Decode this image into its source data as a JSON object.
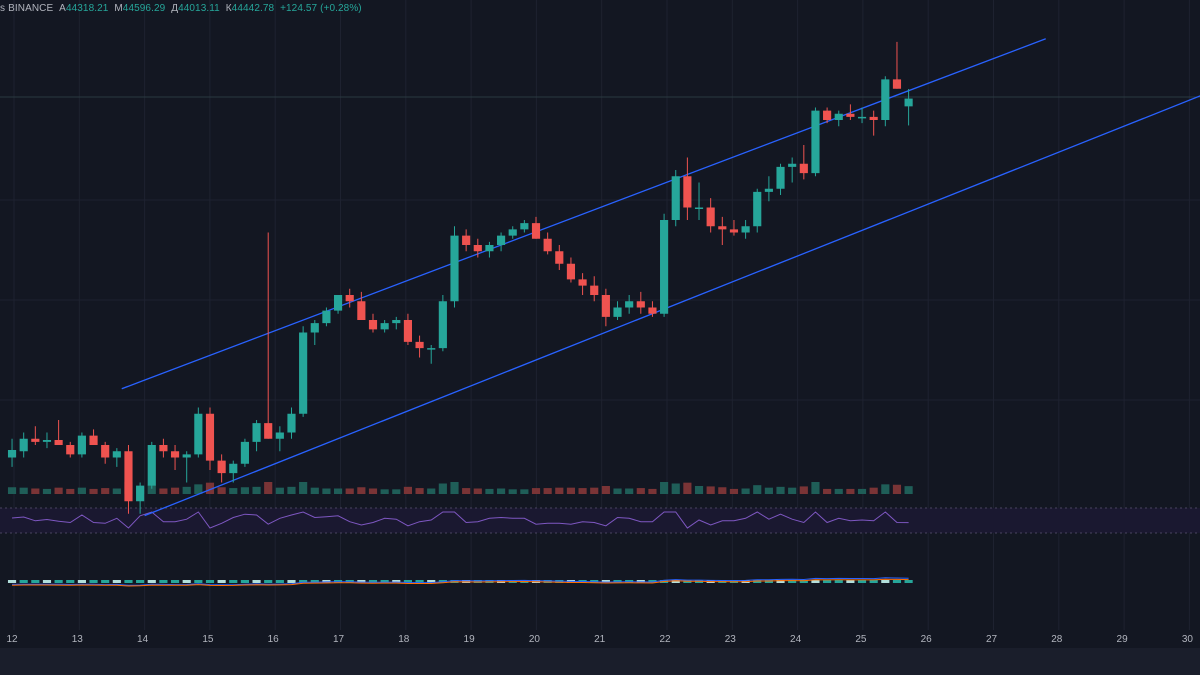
{
  "header": {
    "symbol_fragment": "s",
    "exchange": "BINANCE",
    "open_prefix": "А",
    "open": "44318.21",
    "high_prefix": "М",
    "high": "44596.29",
    "low_prefix": "Д",
    "low": "44013.11",
    "close_prefix": "К",
    "close": "44442.78",
    "change": "+124.57 (+0.28%)"
  },
  "colors": {
    "background": "#131722",
    "up": "#26a69a",
    "down": "#ef5350",
    "channel": "#2962ff",
    "rsi": "#7e57c2",
    "macd": "#2962ff",
    "signal": "#ff6d00"
  },
  "chart_data": {
    "type": "candlestick",
    "x_axis": {
      "ticks": [
        "12",
        "13",
        "14",
        "15",
        "16",
        "17",
        "18",
        "19",
        "20",
        "21",
        "22",
        "23",
        "24",
        "25",
        "26",
        "27",
        "28",
        "29",
        "30"
      ],
      "start_index": 0,
      "end_index": 18
    },
    "y_range": [
      38500,
      45700
    ],
    "candles": [
      [
        38700,
        39000,
        38550,
        38820
      ],
      [
        38800,
        39100,
        38700,
        39000
      ],
      [
        39000,
        39200,
        38900,
        38950
      ],
      [
        38950,
        39100,
        38850,
        38980
      ],
      [
        38980,
        39300,
        38900,
        38900
      ],
      [
        38900,
        38950,
        38700,
        38750
      ],
      [
        38750,
        39100,
        38700,
        39050
      ],
      [
        39050,
        39150,
        38900,
        38900
      ],
      [
        38900,
        38950,
        38600,
        38700
      ],
      [
        38700,
        38850,
        38550,
        38800
      ],
      [
        38800,
        38900,
        37800,
        38000
      ],
      [
        38000,
        38300,
        37800,
        38250
      ],
      [
        38250,
        38950,
        38200,
        38900
      ],
      [
        38900,
        39000,
        38700,
        38800
      ],
      [
        38800,
        38900,
        38500,
        38700
      ],
      [
        38700,
        38800,
        38300,
        38750
      ],
      [
        38750,
        39500,
        38700,
        39400
      ],
      [
        39400,
        39500,
        38500,
        38650
      ],
      [
        38650,
        38750,
        38300,
        38450
      ],
      [
        38450,
        38650,
        38300,
        38600
      ],
      [
        38600,
        39000,
        38550,
        38950
      ],
      [
        38950,
        39300,
        38800,
        39250
      ],
      [
        39250,
        42300,
        39000,
        39000
      ],
      [
        39000,
        39200,
        38800,
        39100
      ],
      [
        39100,
        39500,
        39000,
        39400
      ],
      [
        39400,
        40800,
        39350,
        40700
      ],
      [
        40700,
        40900,
        40500,
        40850
      ],
      [
        40850,
        41100,
        40800,
        41050
      ],
      [
        41050,
        41300,
        41000,
        41300
      ],
      [
        41300,
        41400,
        41100,
        41200
      ],
      [
        41200,
        41350,
        40900,
        40900
      ],
      [
        40900,
        41000,
        40700,
        40750
      ],
      [
        40750,
        40900,
        40700,
        40850
      ],
      [
        40850,
        40950,
        40750,
        40900
      ],
      [
        40900,
        41000,
        40500,
        40550
      ],
      [
        40550,
        40650,
        40300,
        40450
      ],
      [
        40450,
        40500,
        40200,
        40450
      ],
      [
        40450,
        41300,
        40400,
        41200
      ],
      [
        41200,
        42400,
        41100,
        42250
      ],
      [
        42250,
        42350,
        42000,
        42100
      ],
      [
        42100,
        42200,
        41900,
        42000
      ],
      [
        42000,
        42150,
        41900,
        42100
      ],
      [
        42100,
        42300,
        42000,
        42250
      ],
      [
        42250,
        42400,
        42200,
        42350
      ],
      [
        42350,
        42500,
        42300,
        42450
      ],
      [
        42450,
        42550,
        42200,
        42200
      ],
      [
        42200,
        42300,
        41950,
        42000
      ],
      [
        42000,
        42100,
        41700,
        41800
      ],
      [
        41800,
        41900,
        41500,
        41550
      ],
      [
        41550,
        41650,
        41300,
        41450
      ],
      [
        41450,
        41600,
        41200,
        41300
      ],
      [
        41300,
        41400,
        40800,
        40950
      ],
      [
        40950,
        41200,
        40900,
        41100
      ],
      [
        41100,
        41300,
        41000,
        41200
      ],
      [
        41200,
        41350,
        41000,
        41100
      ],
      [
        41100,
        41200,
        40950,
        41000
      ],
      [
        41000,
        42600,
        40950,
        42500
      ],
      [
        42500,
        43300,
        42400,
        43200
      ],
      [
        43200,
        43500,
        42500,
        42700
      ],
      [
        42700,
        43100,
        42500,
        42700
      ],
      [
        42700,
        42850,
        42300,
        42400
      ],
      [
        42400,
        42550,
        42100,
        42350
      ],
      [
        42350,
        42500,
        42250,
        42300
      ],
      [
        42300,
        42500,
        42200,
        42400
      ],
      [
        42400,
        43000,
        42300,
        42950
      ],
      [
        42950,
        43200,
        42800,
        43000
      ],
      [
        43000,
        43400,
        42900,
        43350
      ],
      [
        43350,
        43500,
        43100,
        43400
      ],
      [
        43400,
        43700,
        43150,
        43250
      ],
      [
        43250,
        44300,
        43200,
        44250
      ],
      [
        44250,
        44300,
        44050,
        44100
      ],
      [
        44100,
        44250,
        44000,
        44200
      ],
      [
        44200,
        44350,
        44100,
        44150
      ],
      [
        44150,
        44300,
        44050,
        44150
      ],
      [
        44150,
        44250,
        43850,
        44100
      ],
      [
        44100,
        44800,
        44000,
        44750
      ],
      [
        44750,
        45350,
        44600,
        44600
      ],
      [
        44318.21,
        44596.29,
        44013.11,
        44442.78
      ]
    ],
    "channel_lines": [
      {
        "name": "",
        "from": {
          "x": 1.65,
          "y": 39800
        },
        "to": {
          "x": 15.8,
          "y": 45400
        }
      },
      {
        "name": "",
        "from": {
          "x": 2.0,
          "y": 37770
        },
        "to": {
          "x": 18.2,
          "y": 44500
        }
      }
    ]
  }
}
